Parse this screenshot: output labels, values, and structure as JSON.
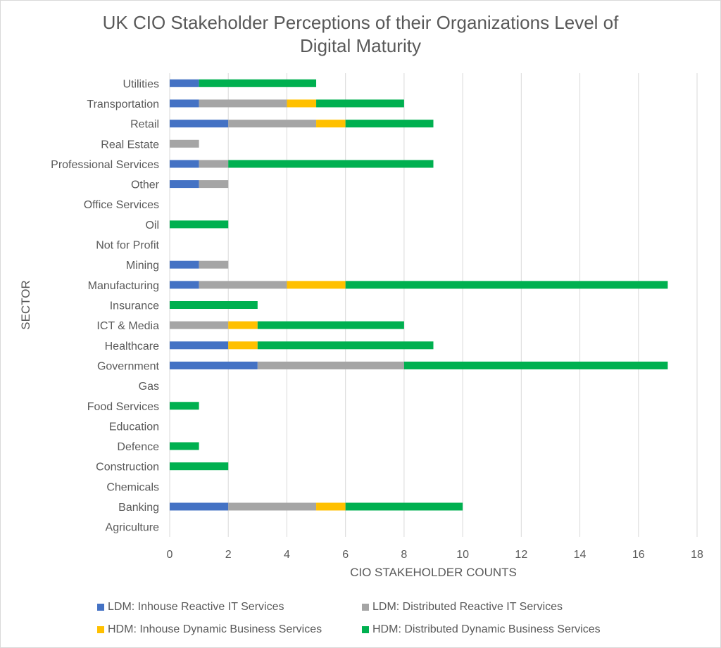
{
  "chart_data": {
    "type": "bar",
    "orientation": "horizontal",
    "stacked": true,
    "title_lines": [
      "UK CIO Stakeholder Perceptions of their Organizations Level of",
      "Digital Maturity"
    ],
    "xlabel": "CIO STAKEHOLDER COUNTS",
    "ylabel": "SECTOR",
    "xlim": [
      0,
      18
    ],
    "xticks": [
      0,
      2,
      4,
      6,
      8,
      10,
      12,
      14,
      16,
      18
    ],
    "grid": "vertical",
    "legend_position": "bottom",
    "categories": [
      "Utilities",
      "Transportation",
      "Retail",
      "Real Estate",
      "Professional Services",
      "Other",
      "Office Services",
      "Oil",
      "Not for Profit",
      "Mining",
      "Manufacturing",
      "Insurance",
      "ICT & Media",
      "Healthcare",
      "Government",
      "Gas",
      "Food Services",
      "Education",
      "Defence",
      "Construction",
      "Chemicals",
      "Banking",
      "Agriculture"
    ],
    "series": [
      {
        "name": "LDM: Inhouse Reactive IT Services",
        "color": "#4472c4",
        "values": [
          1,
          1,
          2,
          0,
          1,
          1,
          0,
          0,
          0,
          1,
          1,
          0,
          0,
          2,
          3,
          0,
          0,
          0,
          0,
          0,
          0,
          2,
          0
        ]
      },
      {
        "name": "LDM: Distributed Reactive IT Services",
        "color": "#a5a5a5",
        "values": [
          0,
          3,
          3,
          1,
          1,
          1,
          0,
          0,
          0,
          1,
          3,
          0,
          2,
          0,
          5,
          0,
          0,
          0,
          0,
          0,
          0,
          3,
          0
        ]
      },
      {
        "name": "HDM: Inhouse Dynamic Business Services",
        "color": "#ffc000",
        "values": [
          0,
          1,
          1,
          0,
          0,
          0,
          0,
          0,
          0,
          0,
          2,
          0,
          1,
          1,
          0,
          0,
          0,
          0,
          0,
          0,
          0,
          1,
          0
        ]
      },
      {
        "name": "HDM: Distributed Dynamic Business Services",
        "color": "#00b050",
        "values": [
          4,
          3,
          3,
          0,
          7,
          0,
          0,
          2,
          0,
          0,
          11,
          3,
          5,
          6,
          9,
          0,
          1,
          0,
          1,
          2,
          0,
          4,
          0
        ]
      }
    ]
  }
}
